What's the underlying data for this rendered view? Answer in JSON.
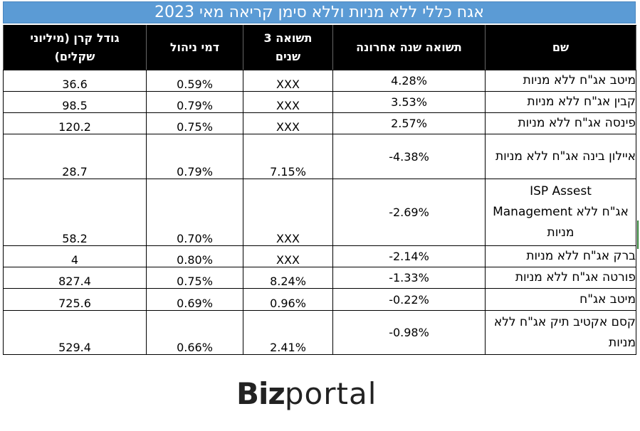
{
  "title": "אגח כללי ללא מניות וללא סימן קריאה מאי 2023",
  "columns": {
    "name": "שם",
    "last_year": "תשואה שנה אחרונה",
    "three_year": "תשואה 3 שנים",
    "fee": "דמי ניהול",
    "size": "גודל קרן (מיליוני שקלים)"
  },
  "rows": [
    {
      "name": "מיטב אג\"ח ללא מניות",
      "last_year": "4.28%",
      "three_year": "XXX",
      "fee": "0.59%",
      "size": "36.6"
    },
    {
      "name": "קבין אג\"ח ללא מניות",
      "last_year": "3.53%",
      "three_year": "XXX",
      "fee": "0.79%",
      "size": "98.5"
    },
    {
      "name": "פינסה אג\"ח ללא מניות",
      "last_year": "2.57%",
      "three_year": "XXX",
      "fee": "0.75%",
      "size": "120.2"
    },
    {
      "name": "איילון בינה אג\"ח ללא מניות",
      "last_year": "-4.38%",
      "three_year": "7.15%",
      "fee": "0.79%",
      "size": "28.7"
    },
    {
      "name_line1": "ISP Assest",
      "name_line2a": "אג\"ח ללא",
      "name_line2b": "Management",
      "name_line3": "מניות",
      "last_year": "-2.69%",
      "three_year": "XXX",
      "fee": "0.70%",
      "size": "58.2"
    },
    {
      "name": "ברק אג\"ח ללא מניות",
      "last_year": "-2.14%",
      "three_year": "XXX",
      "fee": "0.80%",
      "size": "4"
    },
    {
      "name": "פורטה אג\"ח ללא מניות",
      "last_year": "-1.33%",
      "three_year": "8.24%",
      "fee": "0.75%",
      "size": "827.4"
    },
    {
      "name": "מיטב אג\"ח",
      "last_year": "-0.22%",
      "three_year": "0.96%",
      "fee": "0.69%",
      "size": "725.6"
    },
    {
      "name": "קסם אקטיב תיק אג\"ח ללא מניות",
      "last_year": "-0.98%",
      "three_year": "2.41%",
      "fee": "0.66%",
      "size": "529.4"
    }
  ],
  "logo": {
    "part1": "Biz",
    "part2": "portal"
  }
}
